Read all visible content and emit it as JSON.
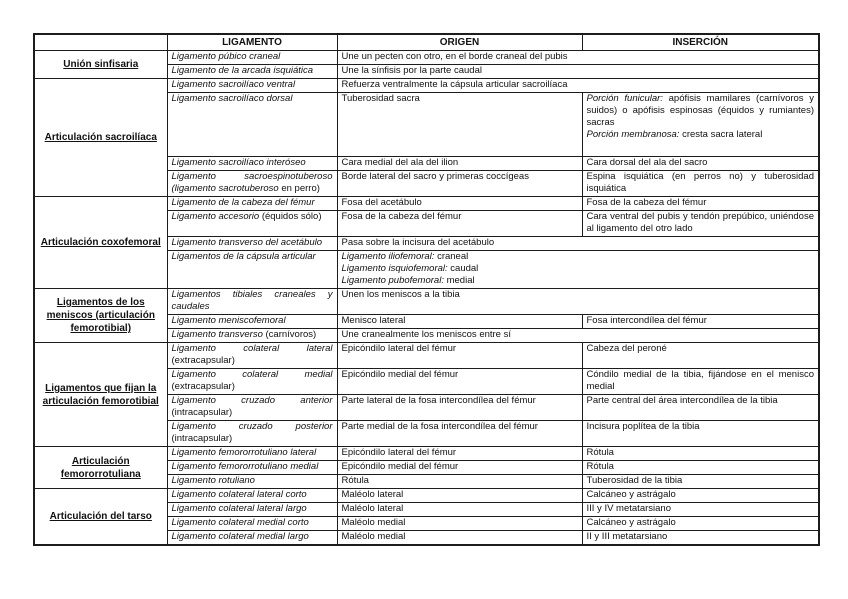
{
  "page": {
    "background_color": "#ffffff",
    "border_color": "#1c1c1c",
    "text_color": "#111111"
  },
  "table": {
    "headers": {
      "joint": "",
      "ligament": "LIGAMENTO",
      "origin": "ORIGEN",
      "insertion": "INSERCIÓN"
    },
    "groups": [
      {
        "joint": "Unión sinfisaria",
        "rows": [
          {
            "ligament": [
              [
                {
                  "t": "Ligamento púbico craneal",
                  "i": true
                }
              ]
            ],
            "origin": [
              [
                "Une un pecten con otro, en el borde craneal del pubis"
              ]
            ],
            "origin_colspan": 2,
            "insertion": null
          },
          {
            "ligament": [
              [
                {
                  "t": "Ligamento de la arcada isquiática",
                  "i": true
                }
              ]
            ],
            "origin": [
              [
                "Une la sínfisis por la parte caudal"
              ]
            ],
            "origin_colspan": 2,
            "insertion": null
          }
        ]
      },
      {
        "joint": "Articulación sacroilíaca",
        "rows": [
          {
            "ligament": [
              [
                {
                  "t": "Ligamento sacroilíaco ventral",
                  "i": true
                }
              ]
            ],
            "origin": [
              [
                "Refuerza ventralmente la cápsula articular sacroilíaca"
              ]
            ],
            "origin_colspan": 2,
            "insertion": null
          },
          {
            "ligament": [
              [
                {
                  "t": "Ligamento sacroilíaco dorsal",
                  "i": true
                }
              ]
            ],
            "origin": [
              [
                "Tuberosidad sacra"
              ]
            ],
            "insertion": [
              [
                {
                  "t": "Porción funicular:",
                  "i": true
                },
                " apófisis mamilares (carnívoros y suidos) o apófisis espinosas (équidos y rumiantes) sacras"
              ],
              [
                {
                  "t": "Porción membranosa:",
                  "i": true
                },
                " cresta sacra lateral"
              ]
            ],
            "min_h": 62
          },
          {
            "ligament": [
              [
                {
                  "t": "Ligamento sacroilíaco interóseo",
                  "i": true
                }
              ]
            ],
            "origin": [
              [
                "Cara medial del ala del ilion"
              ]
            ],
            "insertion": [
              [
                "Cara dorsal del ala del sacro"
              ]
            ]
          },
          {
            "ligament": [
              [
                {
                  "t": "Ligamento sacroespinotuberoso (ligamento sacrotuberoso ",
                  "i": true
                },
                "en perro)"
              ]
            ],
            "origin": [
              [
                "Borde lateral del sacro y primeras coccígeas"
              ]
            ],
            "insertion": [
              [
                "Espina isquiática (en perros no) y tuberosidad isquiática"
              ]
            ]
          }
        ]
      },
      {
        "joint": "Articulación coxofemoral",
        "rows": [
          {
            "ligament": [
              [
                {
                  "t": "Ligamento de la cabeza del fémur",
                  "i": true
                }
              ]
            ],
            "origin": [
              [
                "Fosa del acetábulo"
              ]
            ],
            "insertion": [
              [
                "Fosa de la cabeza del fémur"
              ]
            ]
          },
          {
            "ligament": [
              [
                {
                  "t": "Ligamento accesorio ",
                  "i": true
                },
                "(équidos sólo)"
              ]
            ],
            "origin": [
              [
                "Fosa de la cabeza del fémur"
              ]
            ],
            "insertion": [
              [
                "Cara ventral del pubis y tendón prepúbico, uniéndose al ligamento del otro lado"
              ]
            ]
          },
          {
            "ligament": [
              [
                {
                  "t": "Ligamento transverso del acetábulo",
                  "i": true
                }
              ]
            ],
            "origin": [
              [
                "Pasa sobre la incisura del acetábulo"
              ]
            ],
            "origin_colspan": 2,
            "insertion": null
          },
          {
            "ligament": [
              [
                {
                  "t": "Ligamentos de la cápsula articular",
                  "i": true
                }
              ]
            ],
            "origin": [
              [
                {
                  "t": "Ligamento iliofemoral:",
                  "i": true
                },
                " craneal"
              ],
              [
                {
                  "t": "Ligamento isquiofemoral:",
                  "i": true
                },
                " caudal"
              ],
              [
                {
                  "t": "Ligamento pubofemoral:",
                  "i": true
                },
                " medial"
              ]
            ],
            "origin_colspan": 2,
            "insertion": null
          }
        ]
      },
      {
        "joint": "Ligamentos de los meniscos (articulación femorotibial)",
        "rows": [
          {
            "ligament": [
              [
                {
                  "t": "Ligamentos tibiales craneales y caudales",
                  "i": true
                }
              ]
            ],
            "origin": [
              [
                "Unen los meniscos a la tibia"
              ]
            ],
            "origin_colspan": 2,
            "insertion": null,
            "min_h": 24
          },
          {
            "ligament": [
              [
                {
                  "t": "Ligamento meniscofemoral",
                  "i": true
                }
              ]
            ],
            "origin": [
              [
                "Menisco lateral"
              ]
            ],
            "insertion": [
              [
                "Fosa intercondílea del fémur"
              ]
            ]
          },
          {
            "ligament": [
              [
                {
                  "t": "Ligamento transverso ",
                  "i": true
                },
                "(carnívoros)"
              ]
            ],
            "origin": [
              [
                "Une cranealmente los meniscos entre sí"
              ]
            ],
            "origin_colspan": 2,
            "insertion": null
          }
        ]
      },
      {
        "joint": "Ligamentos que fijan la articulación femorotibial",
        "rows": [
          {
            "ligament": [
              [
                {
                  "t": "Ligamento colateral lateral ",
                  "i": true
                },
                "(extracapsular)"
              ]
            ],
            "origin": [
              [
                "Epicóndilo lateral del fémur"
              ]
            ],
            "insertion": [
              [
                "Cabeza del peroné"
              ]
            ],
            "min_h": 24
          },
          {
            "ligament": [
              [
                {
                  "t": "Ligamento colateral medial ",
                  "i": true
                },
                "(extracapsular)"
              ]
            ],
            "origin": [
              [
                "Epicóndilo medial del fémur"
              ]
            ],
            "insertion": [
              [
                "Cóndilo medial de la tibia, fijándose en el menisco medial"
              ]
            ]
          },
          {
            "ligament": [
              [
                {
                  "t": "Ligamento cruzado anterior ",
                  "i": true
                },
                "(intracapsular)"
              ]
            ],
            "origin": [
              [
                "Parte lateral de la fosa intercondílea del fémur"
              ]
            ],
            "insertion": [
              [
                "Parte central del área intercondílea de la tibia"
              ]
            ],
            "min_h": 24
          },
          {
            "ligament": [
              [
                {
                  "t": "Ligamento cruzado posterior ",
                  "i": true
                },
                "(intracapsular)"
              ]
            ],
            "origin": [
              [
                "Parte medial de la fosa intercondílea del fémur"
              ]
            ],
            "insertion": [
              [
                "Incisura poplítea de la tibia"
              ]
            ],
            "min_h": 24
          }
        ]
      },
      {
        "joint": "Articulación femororrotuliana",
        "rows": [
          {
            "ligament": [
              [
                {
                  "t": "Ligamento femororrotuliano lateral",
                  "i": true
                }
              ]
            ],
            "origin": [
              [
                "Epicóndilo lateral del fémur"
              ]
            ],
            "insertion": [
              [
                "Rótula"
              ]
            ]
          },
          {
            "ligament": [
              [
                {
                  "t": "Ligamento femororrotuliano medial",
                  "i": true
                }
              ]
            ],
            "origin": [
              [
                "Epicóndilo medial del fémur"
              ]
            ],
            "insertion": [
              [
                "Rótula"
              ]
            ]
          },
          {
            "ligament": [
              [
                {
                  "t": "Ligamento rotuliano",
                  "i": true
                }
              ]
            ],
            "origin": [
              [
                "Rótula"
              ]
            ],
            "insertion": [
              [
                "Tuberosidad de la tibia"
              ]
            ]
          }
        ]
      },
      {
        "joint": "Articulación del tarso",
        "rows": [
          {
            "ligament": [
              [
                {
                  "t": "Ligamento colateral lateral corto",
                  "i": true
                }
              ]
            ],
            "origin": [
              [
                "Maléolo lateral"
              ]
            ],
            "insertion": [
              [
                "Calcáneo y astrágalo"
              ]
            ]
          },
          {
            "ligament": [
              [
                {
                  "t": "Ligamento colateral lateral largo",
                  "i": true
                }
              ]
            ],
            "origin": [
              [
                "Maléolo lateral"
              ]
            ],
            "insertion": [
              [
                "III y IV metatarsiano"
              ]
            ]
          },
          {
            "ligament": [
              [
                {
                  "t": "Ligamento colateral medial corto",
                  "i": true
                }
              ]
            ],
            "origin": [
              [
                "Maléolo medial"
              ]
            ],
            "insertion": [
              [
                "Calcáneo y astrágalo"
              ]
            ]
          },
          {
            "ligament": [
              [
                {
                  "t": "Ligamento colateral medial largo",
                  "i": true
                }
              ]
            ],
            "origin": [
              [
                "Maléolo medial"
              ]
            ],
            "insertion": [
              [
                "II y III metatarsiano"
              ]
            ]
          }
        ]
      }
    ]
  }
}
